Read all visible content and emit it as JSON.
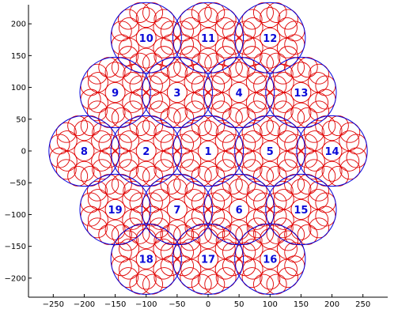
{
  "colors": {
    "cell_circle": "#0000dd",
    "sub_circle": "#e00000",
    "label": "#0a0ad8",
    "axis": "#000000",
    "background": "#ffffff"
  },
  "chart_data": {
    "type": "scatter",
    "title": "",
    "xlabel": "",
    "ylabel": "",
    "xlim": [
      -290,
      290
    ],
    "ylim": [
      -230,
      230
    ],
    "grid": false,
    "x_ticks": [
      -250,
      -200,
      -150,
      -100,
      -50,
      0,
      50,
      100,
      150,
      200,
      250
    ],
    "y_ticks": [
      200,
      150,
      100,
      50,
      0,
      -50,
      -100,
      -150,
      -200
    ],
    "cell_radius": 57,
    "sub_circle_radius": 16,
    "cells": [
      {
        "label": "1",
        "x": 0,
        "y": 0
      },
      {
        "label": "2",
        "x": -100,
        "y": 0
      },
      {
        "label": "3",
        "x": -50,
        "y": 92
      },
      {
        "label": "4",
        "x": 50,
        "y": 92
      },
      {
        "label": "5",
        "x": 100,
        "y": 0
      },
      {
        "label": "6",
        "x": 50,
        "y": -92
      },
      {
        "label": "7",
        "x": -50,
        "y": -92
      },
      {
        "label": "8",
        "x": -200,
        "y": 0
      },
      {
        "label": "9",
        "x": -150,
        "y": 92
      },
      {
        "label": "10",
        "x": -100,
        "y": 178
      },
      {
        "label": "11",
        "x": 0,
        "y": 178
      },
      {
        "label": "12",
        "x": 100,
        "y": 178
      },
      {
        "label": "13",
        "x": 150,
        "y": 92
      },
      {
        "label": "14",
        "x": 200,
        "y": 0
      },
      {
        "label": "15",
        "x": 150,
        "y": -92
      },
      {
        "label": "16",
        "x": 100,
        "y": -170
      },
      {
        "label": "17",
        "x": 0,
        "y": -170
      },
      {
        "label": "18",
        "x": -100,
        "y": -170
      },
      {
        "label": "19",
        "x": -150,
        "y": -92
      }
    ]
  }
}
